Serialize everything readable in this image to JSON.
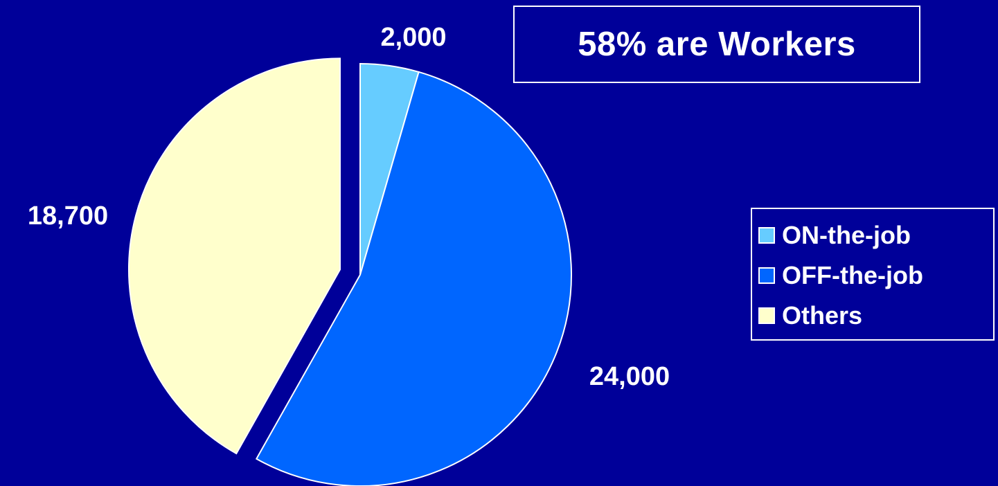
{
  "title": "58% are Workers",
  "colors": {
    "background": "#000099",
    "outline": "#ffffff"
  },
  "chart_data": {
    "type": "pie",
    "categories": [
      "ON-the-job",
      "OFF-the-job",
      "Others"
    ],
    "values": [
      2000,
      24000,
      18700
    ],
    "data_labels": [
      "2,000",
      "24,000",
      "18,700"
    ],
    "colors": [
      "#66ccff",
      "#0066ff",
      "#ffffcc"
    ],
    "exploded": "Others",
    "start_angle": "12 o'clock, clockwise",
    "legend_position": "right"
  }
}
